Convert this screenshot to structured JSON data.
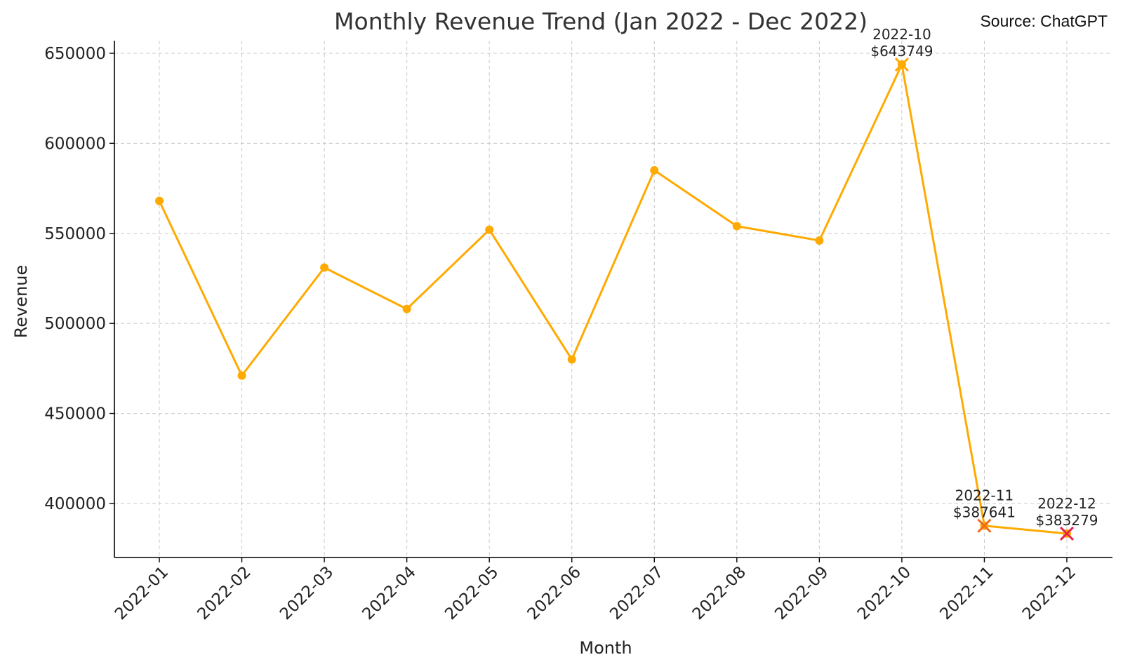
{
  "chart_data": {
    "type": "line",
    "title": "Monthly Revenue Trend (Jan 2022 - Dec 2022)",
    "source": "Source: ChatGPT",
    "xlabel": "Month",
    "ylabel": "Revenue",
    "categories": [
      "2022-01",
      "2022-02",
      "2022-03",
      "2022-04",
      "2022-05",
      "2022-06",
      "2022-07",
      "2022-08",
      "2022-09",
      "2022-10",
      "2022-11",
      "2022-12"
    ],
    "series": [
      {
        "values": [
          568000,
          471000,
          531000,
          508000,
          552000,
          480000,
          585000,
          554000,
          546000,
          643749,
          387641,
          383279
        ]
      }
    ],
    "ylim": [
      370000,
      657000
    ],
    "yticks": [
      400000,
      450000,
      500000,
      550000,
      600000,
      650000
    ],
    "grid": true,
    "line_color": "#FFAA00",
    "annotations": [
      {
        "month": "2022-10",
        "label": "2022-10",
        "value_label": "$643749",
        "value": 643749,
        "marker": "x",
        "marker_color": "#FFAA00"
      },
      {
        "month": "2022-11",
        "label": "2022-11",
        "value_label": "$387641",
        "value": 387641,
        "marker": "x",
        "marker_color": "#F06A1A"
      },
      {
        "month": "2022-12",
        "label": "2022-12",
        "value_label": "$383279",
        "value": 383279,
        "marker": "x",
        "marker_color": "#E8224A"
      }
    ]
  }
}
